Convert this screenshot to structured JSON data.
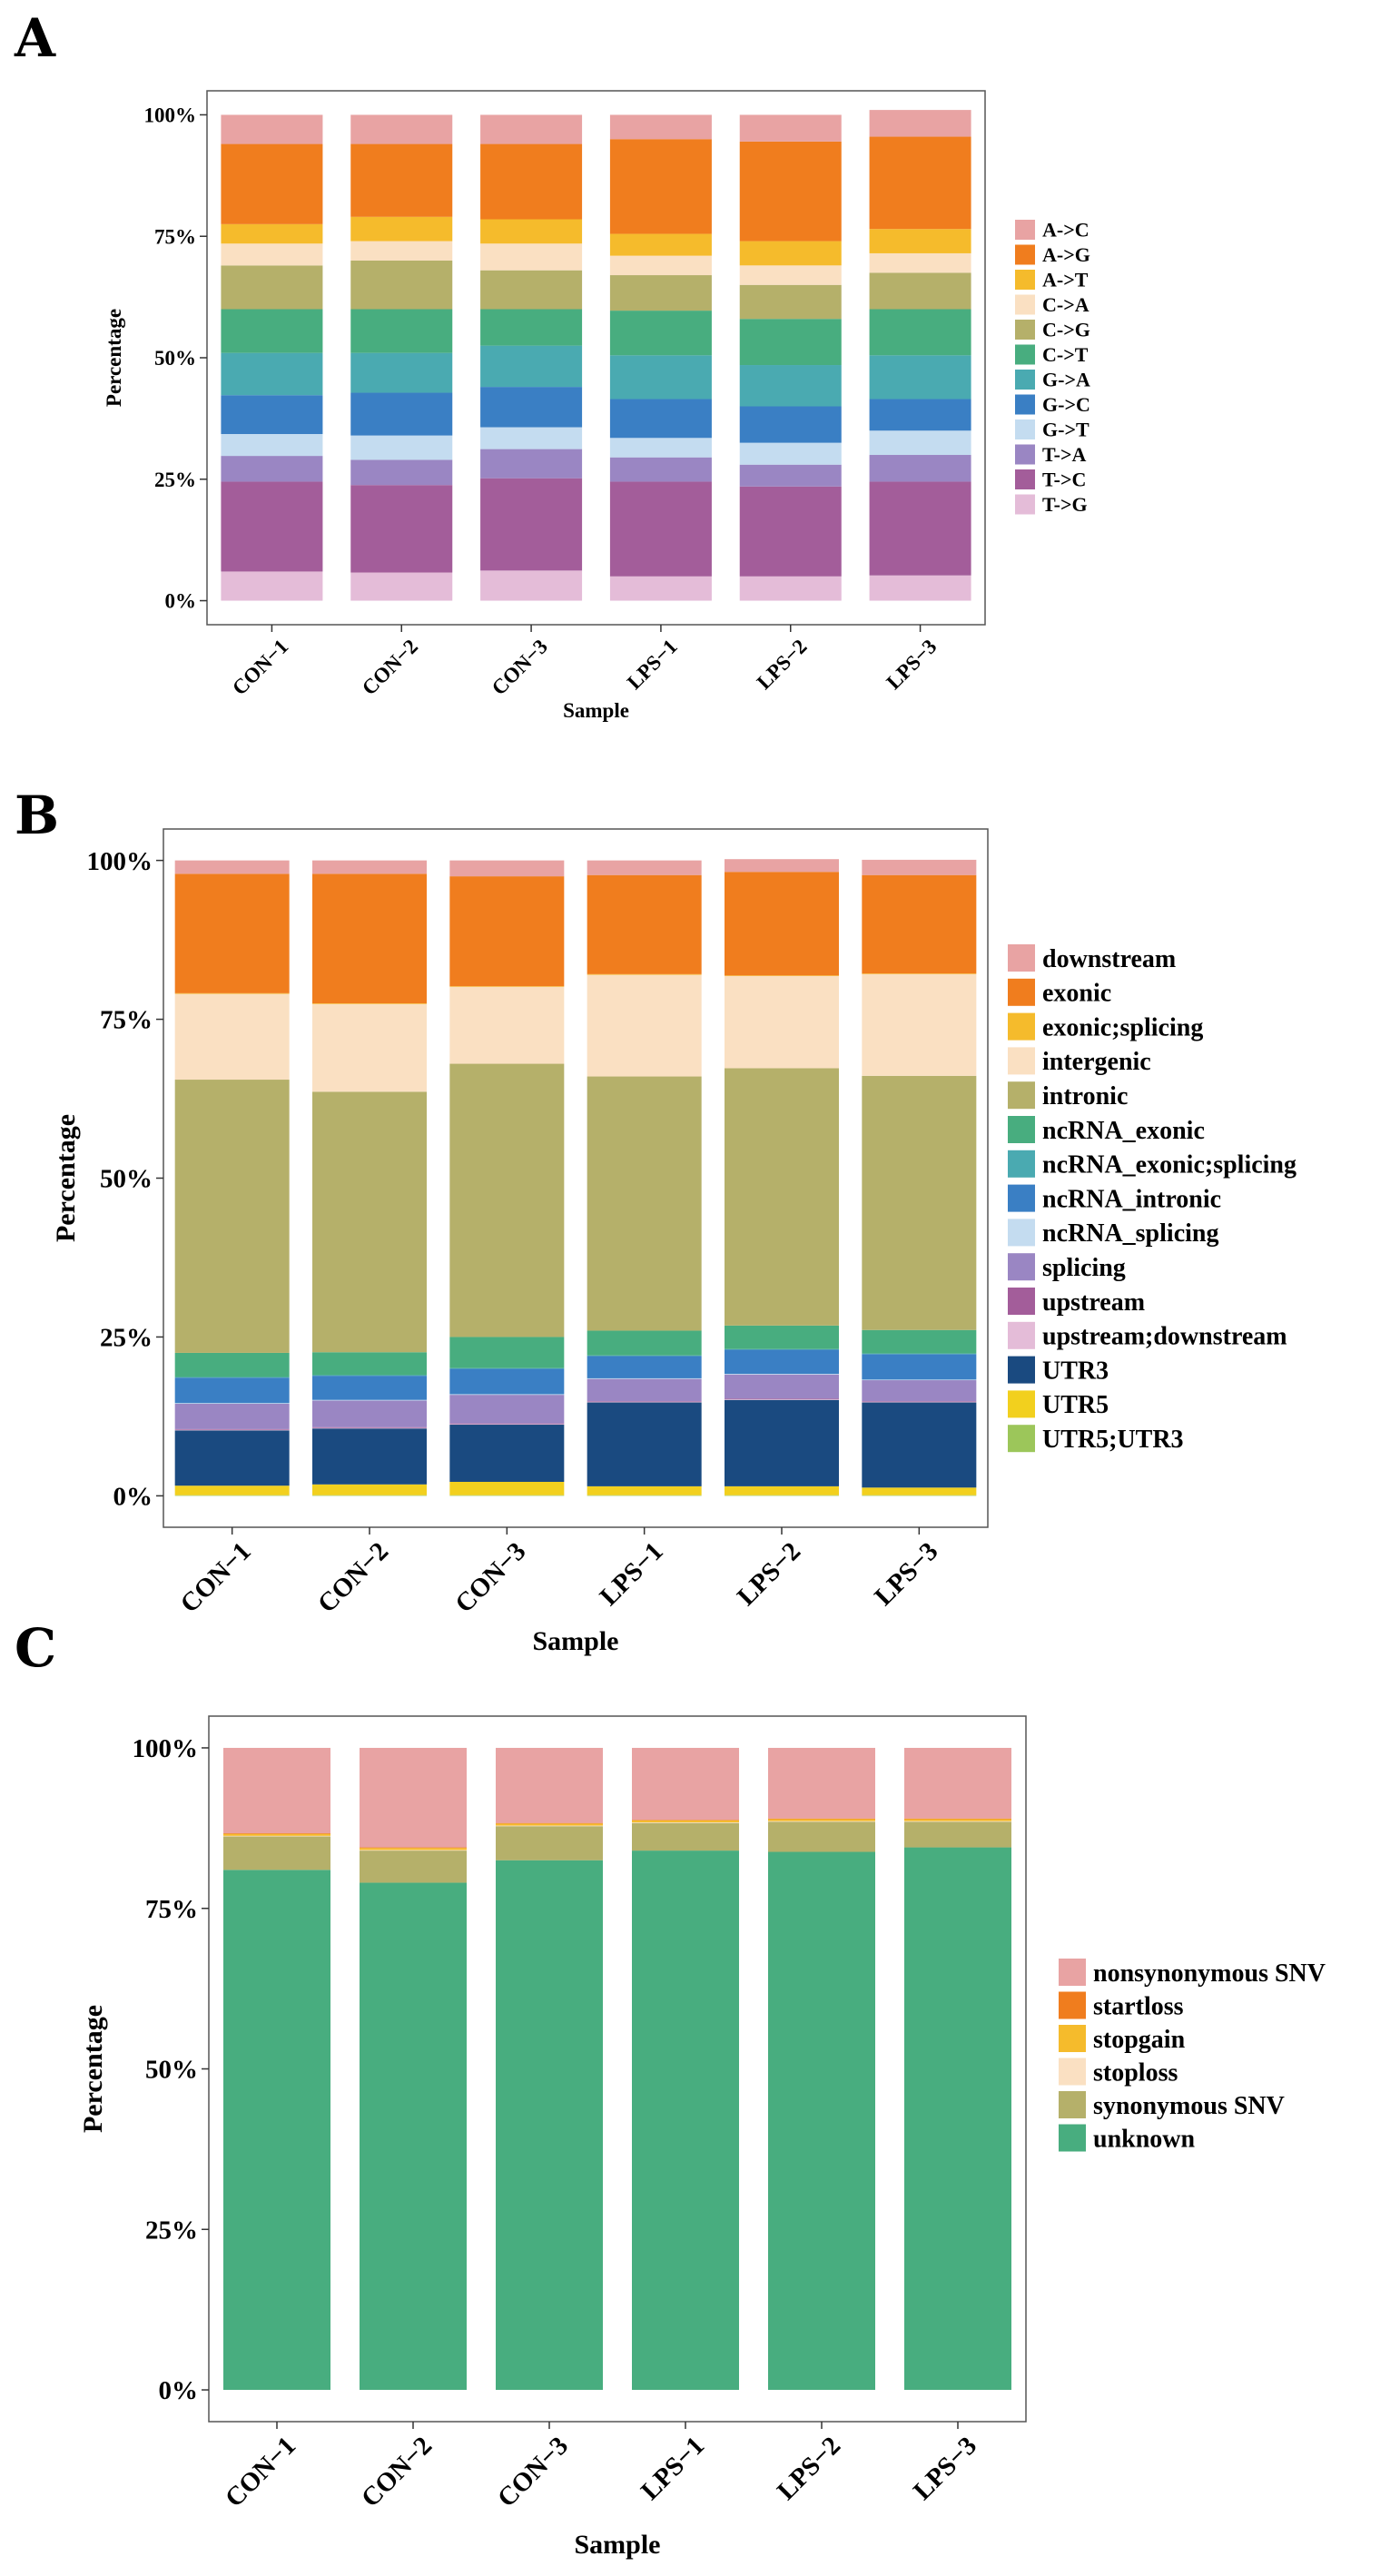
{
  "figure": {
    "panel_letters": [
      "A",
      "B",
      "C"
    ]
  },
  "colors": {
    "A->C": "#e8a3a3",
    "A->G": "#f07d1e",
    "A->T": "#f5bb2c",
    "C->A": "#fae0c2",
    "C->G": "#b5b06a",
    "C->T": "#48ad7f",
    "G->A": "#4aaab1",
    "G->C": "#3a7fc4",
    "G->T": "#c4dcf0",
    "T->A": "#9a86c3",
    "T->C": "#a35d9a",
    "T->G": "#e4bcd8",
    "downstream": "#e8a3a3",
    "exonic": "#f07d1e",
    "exonic;splicing": "#f5bb2c",
    "intergenic": "#fae0c2",
    "intronic": "#b5b06a",
    "ncRNA_exonic": "#48ad7f",
    "ncRNA_exonic;splicing": "#4aaab1",
    "ncRNA_intronic": "#3a7fc4",
    "ncRNA_splicing": "#c4dcf0",
    "splicing": "#9a86c3",
    "upstream": "#a35d9a",
    "upstream;downstream": "#e4bcd8",
    "UTR3": "#1a4a80",
    "UTR5": "#f2d01e",
    "UTR5;UTR3": "#9cc65a",
    "nonsynonymous SNV": "#e8a3a3",
    "startloss": "#f07d1e",
    "stopgain": "#f5bb2c",
    "stoploss": "#fae0c2",
    "synonymous SNV": "#b5b06a",
    "unknown": "#48ad7f"
  },
  "chart_data": [
    {
      "id": "A",
      "type": "bar",
      "stacked": true,
      "title": "",
      "xlabel": "Sample",
      "ylabel": "Percentage",
      "ylim": [
        0,
        100
      ],
      "yticks": [
        "0%",
        "25%",
        "50%",
        "75%",
        "100%"
      ],
      "categories": [
        "CON−1",
        "CON−2",
        "CON−3",
        "LPS−1",
        "LPS−2",
        "LPS−3"
      ],
      "legend_position": "right",
      "series": [
        {
          "name": "T->G",
          "values": [
            6.0,
            5.8,
            6.2,
            5.0,
            5.0,
            5.2
          ]
        },
        {
          "name": "T->C",
          "values": [
            18.5,
            18.0,
            19.0,
            19.5,
            18.5,
            19.3
          ]
        },
        {
          "name": "T->A",
          "values": [
            5.3,
            5.2,
            6.0,
            5.0,
            4.5,
            5.5
          ]
        },
        {
          "name": "G->T",
          "values": [
            4.5,
            5.0,
            4.5,
            4.0,
            4.5,
            5.0
          ]
        },
        {
          "name": "G->C",
          "values": [
            8.0,
            8.8,
            8.3,
            8.0,
            7.5,
            6.5
          ]
        },
        {
          "name": "G->A",
          "values": [
            8.7,
            8.2,
            8.5,
            9.0,
            8.5,
            9.0
          ]
        },
        {
          "name": "C->T",
          "values": [
            9.0,
            9.0,
            7.5,
            9.2,
            9.5,
            9.5
          ]
        },
        {
          "name": "C->G",
          "values": [
            9.0,
            10.0,
            8.0,
            7.3,
            7.0,
            7.5
          ]
        },
        {
          "name": "C->A",
          "values": [
            4.5,
            4.0,
            5.5,
            4.0,
            4.0,
            4.0
          ]
        },
        {
          "name": "A->T",
          "values": [
            4.0,
            5.0,
            5.0,
            4.5,
            5.0,
            5.0
          ]
        },
        {
          "name": "A->G",
          "values": [
            16.5,
            15.0,
            15.5,
            19.5,
            20.5,
            19.0
          ]
        },
        {
          "name": "A->C",
          "values": [
            6.0,
            6.0,
            6.0,
            5.0,
            5.5,
            5.5
          ]
        }
      ],
      "legend": [
        "A->C",
        "A->G",
        "A->T",
        "C->A",
        "C->G",
        "C->T",
        "G->A",
        "G->C",
        "G->T",
        "T->A",
        "T->C",
        "T->G"
      ]
    },
    {
      "id": "B",
      "type": "bar",
      "stacked": true,
      "title": "",
      "xlabel": "Sample",
      "ylabel": "Percentage",
      "ylim": [
        0,
        100
      ],
      "yticks": [
        "0%",
        "25%",
        "50%",
        "75%",
        "100%"
      ],
      "categories": [
        "CON−1",
        "CON−2",
        "CON−3",
        "LPS−1",
        "LPS−2",
        "LPS−3"
      ],
      "legend_position": "right",
      "series": [
        {
          "name": "UTR5;UTR3",
          "values": [
            0.1,
            0.1,
            0.1,
            0.1,
            0.1,
            0.1
          ]
        },
        {
          "name": "UTR5",
          "values": [
            1.5,
            1.7,
            2.1,
            1.4,
            1.4,
            1.2
          ]
        },
        {
          "name": "UTR3",
          "values": [
            8.7,
            8.8,
            9.0,
            13.2,
            13.6,
            13.4
          ]
        },
        {
          "name": "upstream;downstream",
          "values": [
            0.1,
            0.1,
            0.1,
            0.1,
            0.1,
            0.1
          ]
        },
        {
          "name": "upstream",
          "values": [
            0.1,
            0.1,
            0.1,
            0.1,
            0.1,
            0.1
          ]
        },
        {
          "name": "splicing",
          "values": [
            4.0,
            4.2,
            4.5,
            3.5,
            3.8,
            3.3
          ]
        },
        {
          "name": "ncRNA_splicing",
          "values": [
            0.1,
            0.1,
            0.1,
            0.1,
            0.1,
            0.1
          ]
        },
        {
          "name": "ncRNA_intronic",
          "values": [
            4.0,
            3.8,
            4.0,
            3.5,
            3.8,
            4.0
          ]
        },
        {
          "name": "ncRNA_exonic;splicing",
          "values": [
            0.1,
            0.1,
            0.1,
            0.1,
            0.1,
            0.1
          ]
        },
        {
          "name": "ncRNA_exonic",
          "values": [
            3.8,
            3.6,
            4.9,
            3.9,
            3.7,
            3.7
          ]
        },
        {
          "name": "intronic",
          "values": [
            43.0,
            41.0,
            43.0,
            40.0,
            40.5,
            40.0
          ]
        },
        {
          "name": "intergenic",
          "values": [
            13.5,
            13.8,
            12.1,
            16.0,
            14.5,
            16.0
          ]
        },
        {
          "name": "exonic;splicing",
          "values": [
            0.1,
            0.1,
            0.1,
            0.1,
            0.1,
            0.1
          ]
        },
        {
          "name": "exonic",
          "values": [
            18.8,
            20.4,
            17.3,
            15.6,
            16.3,
            15.5
          ]
        },
        {
          "name": "downstream",
          "values": [
            2.1,
            2.1,
            2.5,
            2.3,
            2.0,
            2.4
          ]
        }
      ],
      "legend": [
        "downstream",
        "exonic",
        "exonic;splicing",
        "intergenic",
        "intronic",
        "ncRNA_exonic",
        "ncRNA_exonic;splicing",
        "ncRNA_intronic",
        "ncRNA_splicing",
        "splicing",
        "upstream",
        "upstream;downstream",
        "UTR3",
        "UTR5",
        "UTR5;UTR3"
      ]
    },
    {
      "id": "C",
      "type": "bar",
      "stacked": true,
      "title": "",
      "xlabel": "Sample",
      "ylabel": "Percentage",
      "ylim": [
        0,
        100
      ],
      "yticks": [
        "0%",
        "25%",
        "50%",
        "75%",
        "100%"
      ],
      "categories": [
        "CON−1",
        "CON−2",
        "CON−3",
        "LPS−1",
        "LPS−2",
        "LPS−3"
      ],
      "legend_position": "right",
      "series": [
        {
          "name": "unknown",
          "values": [
            81.0,
            79.0,
            82.5,
            84.0,
            83.8,
            84.5
          ]
        },
        {
          "name": "synonymous SNV",
          "values": [
            5.2,
            5.0,
            5.3,
            4.3,
            4.7,
            4.0
          ]
        },
        {
          "name": "stoploss",
          "values": [
            0.1,
            0.1,
            0.1,
            0.1,
            0.1,
            0.1
          ]
        },
        {
          "name": "stopgain",
          "values": [
            0.3,
            0.3,
            0.3,
            0.3,
            0.3,
            0.3
          ]
        },
        {
          "name": "startloss",
          "values": [
            0.1,
            0.1,
            0.1,
            0.1,
            0.1,
            0.1
          ]
        },
        {
          "name": "nonsynonymous SNV",
          "values": [
            13.3,
            15.5,
            11.7,
            11.2,
            11.0,
            11.0
          ]
        }
      ],
      "legend": [
        "nonsynonymous SNV",
        "startloss",
        "stopgain",
        "stoploss",
        "synonymous SNV",
        "unknown"
      ]
    }
  ]
}
